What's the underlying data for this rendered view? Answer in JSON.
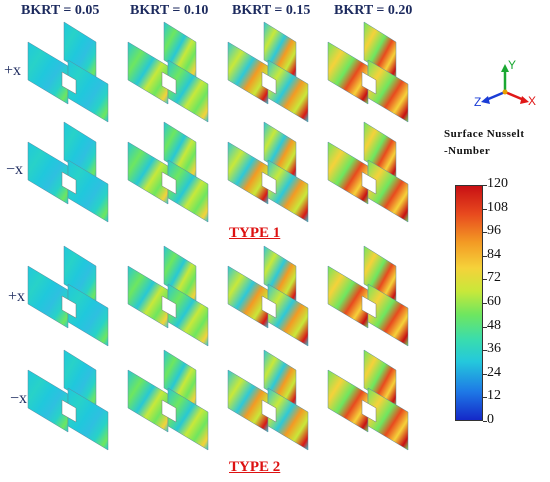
{
  "columns": [
    "BKRT = 0.05",
    "BKRT = 0.10",
    "BKRT = 0.15",
    "BKRT = 0.20"
  ],
  "type_groups": [
    {
      "title": "TYPE 1",
      "rows": [
        "+x",
        "−x"
      ]
    },
    {
      "title": "TYPE 2",
      "rows": [
        "+x",
        "−x"
      ]
    }
  ],
  "axes": {
    "y": "Y",
    "z": "Z",
    "x": "X",
    "colors": {
      "y": "#1aa832",
      "z": "#1a3cd6",
      "x": "#e01818"
    }
  },
  "colorbar": {
    "title_line1": "Surface Nusselt",
    "title_line2": "-Number",
    "ticks": [
      "120",
      "108",
      "96",
      "84",
      "72",
      "60",
      "48",
      "36",
      "24",
      "12",
      "0"
    ],
    "min": 0,
    "max": 120
  },
  "colors": {
    "header": "#1c2a5e",
    "type_title": "#dd1111"
  }
}
